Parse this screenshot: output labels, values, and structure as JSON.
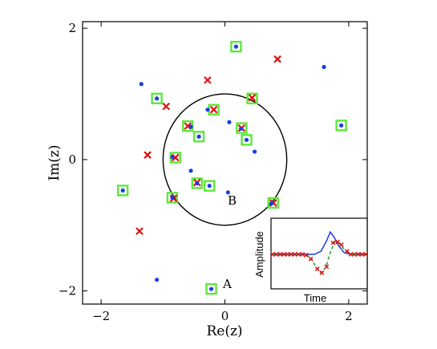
{
  "chart_data": [
    {
      "type": "scatter",
      "xlabel": "Re(z)",
      "ylabel": "Im(z)",
      "xlim": [
        -2.3,
        2.3
      ],
      "ylim": [
        -2.2,
        2.1
      ],
      "xticks": [
        -2,
        0,
        2
      ],
      "yticks": [
        -2,
        0,
        2
      ],
      "tick_labels_x": [
        "−2",
        "0",
        "2"
      ],
      "tick_labels_y": [
        "−2",
        "0",
        "2"
      ],
      "grid": false,
      "circle": {
        "center": [
          0,
          0
        ],
        "radius": 1
      },
      "colors": {
        "dot": "#1a3fe0",
        "cross": "#e01010",
        "square": "#5ce83a",
        "line": "#000000"
      },
      "series": [
        {
          "marker": "dot",
          "points": [
            [
              -1.35,
              1.15
            ],
            [
              -1.1,
              0.93
            ],
            [
              0.18,
              1.72
            ],
            [
              -0.55,
              0.5
            ],
            [
              -0.28,
              0.76
            ],
            [
              -0.42,
              0.35
            ],
            [
              0.07,
              0.57
            ],
            [
              0.26,
              0.47
            ],
            [
              0.35,
              0.3
            ],
            [
              0.48,
              0.12
            ],
            [
              1.88,
              0.52
            ],
            [
              1.6,
              1.41
            ],
            [
              -0.55,
              -0.17
            ],
            [
              -0.85,
              0.04
            ],
            [
              -0.25,
              -0.4
            ],
            [
              -0.45,
              -0.36
            ],
            [
              -0.85,
              -0.58
            ],
            [
              -1.65,
              -0.47
            ],
            [
              0.05,
              -0.5
            ],
            [
              0.75,
              -0.67
            ],
            [
              -1.1,
              -1.83
            ],
            [
              -0.22,
              -1.97
            ]
          ]
        },
        {
          "marker": "cross",
          "points": [
            [
              0.85,
              1.53
            ],
            [
              -0.28,
              1.21
            ],
            [
              0.44,
              0.94
            ],
            [
              -0.95,
              0.81
            ],
            [
              -0.18,
              0.76
            ],
            [
              -0.6,
              0.51
            ],
            [
              0.27,
              0.48
            ],
            [
              -1.25,
              0.07
            ],
            [
              -0.8,
              0.03
            ],
            [
              -0.45,
              -0.35
            ],
            [
              -0.83,
              -0.59
            ],
            [
              0.78,
              -0.66
            ],
            [
              -1.38,
              -1.09
            ]
          ]
        },
        {
          "marker": "square",
          "points": [
            [
              0.18,
              1.72
            ],
            [
              -1.1,
              0.93
            ],
            [
              0.44,
              0.93
            ],
            [
              -0.18,
              0.76
            ],
            [
              -0.6,
              0.51
            ],
            [
              -0.42,
              0.35
            ],
            [
              0.27,
              0.48
            ],
            [
              0.35,
              0.3
            ],
            [
              1.88,
              0.52
            ],
            [
              -0.8,
              0.03
            ],
            [
              -0.45,
              -0.36
            ],
            [
              -0.25,
              -0.4
            ],
            [
              -0.85,
              -0.58
            ],
            [
              -1.65,
              -0.47
            ],
            [
              0.78,
              -0.66
            ],
            [
              -0.22,
              -1.97
            ]
          ]
        }
      ],
      "annotations": [
        {
          "text": "A",
          "x": -0.05,
          "y": -1.97
        },
        {
          "text": "B",
          "x": 0.1,
          "y": -0.58
        }
      ]
    },
    {
      "type": "line",
      "xlabel": "Time",
      "ylabel": "Amplitude",
      "series": [
        {
          "color": "#1a3fe0",
          "style": "solid",
          "points": [
            [
              0,
              0
            ],
            [
              0.45,
              0
            ],
            [
              0.52,
              0.08
            ],
            [
              0.58,
              0.35
            ],
            [
              0.62,
              0.58
            ],
            [
              0.66,
              0.45
            ],
            [
              0.71,
              0.22
            ],
            [
              0.77,
              0.04
            ],
            [
              0.85,
              0
            ],
            [
              1,
              0
            ]
          ]
        },
        {
          "color": "#2e9e2e",
          "style": "dashed",
          "points": [
            [
              0,
              0
            ],
            [
              0.36,
              0
            ],
            [
              0.42,
              -0.12
            ],
            [
              0.47,
              -0.35
            ],
            [
              0.52,
              -0.48
            ],
            [
              0.57,
              -0.35
            ],
            [
              0.62,
              0.05
            ],
            [
              0.67,
              0.33
            ],
            [
              0.72,
              0.28
            ],
            [
              0.78,
              0.1
            ],
            [
              0.84,
              0
            ],
            [
              1,
              0
            ]
          ]
        },
        {
          "color": "#e01010",
          "style": "cross-markers",
          "points": [
            [
              0.0,
              0
            ],
            [
              0.04,
              0
            ],
            [
              0.08,
              0
            ],
            [
              0.12,
              0
            ],
            [
              0.16,
              0
            ],
            [
              0.2,
              0
            ],
            [
              0.24,
              0
            ],
            [
              0.28,
              0
            ],
            [
              0.32,
              0
            ],
            [
              0.36,
              -0.02
            ],
            [
              0.41,
              -0.12
            ],
            [
              0.48,
              -0.38
            ],
            [
              0.53,
              -0.48
            ],
            [
              0.58,
              -0.32
            ],
            [
              0.65,
              0.3
            ],
            [
              0.7,
              0.32
            ],
            [
              0.74,
              0.25
            ],
            [
              0.8,
              0.08
            ],
            [
              0.84,
              0
            ],
            [
              0.88,
              0
            ],
            [
              0.92,
              0
            ],
            [
              0.96,
              0
            ],
            [
              1.0,
              0
            ]
          ]
        }
      ]
    }
  ]
}
